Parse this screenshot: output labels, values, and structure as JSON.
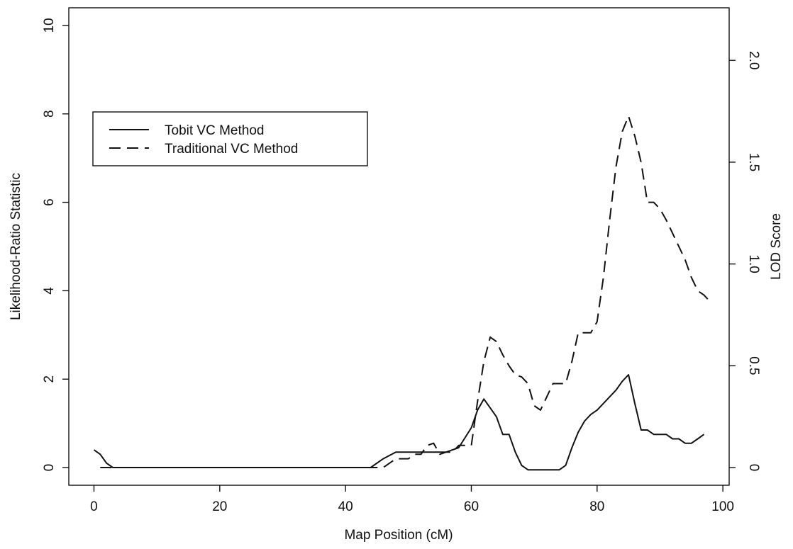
{
  "chart_data": {
    "type": "line",
    "title": "",
    "xlabel": "Map Position (cM)",
    "ylabel": "Likelihood-Ratio Statistic",
    "y2label": "LOD Score",
    "xlim": [
      -4,
      101
    ],
    "ylim": [
      -0.4,
      10.4
    ],
    "y2lim": [
      -0.0869,
      2.2583
    ],
    "x_ticks": [
      0,
      20,
      40,
      60,
      80,
      100
    ],
    "y_ticks": [
      0,
      2,
      4,
      6,
      8,
      10
    ],
    "y2_ticks": [
      "0",
      "0.5",
      "1.0",
      "1.5",
      "2.0"
    ],
    "y2_tick_values": [
      0,
      0.5,
      1.0,
      1.5,
      2.0
    ],
    "legend_position": "upper-left",
    "grid": false,
    "series": [
      {
        "name": "Tobit VC Method",
        "style": "solid",
        "x": [
          0,
          1,
          2,
          3,
          5,
          10,
          20,
          30,
          40,
          44,
          46,
          48,
          50,
          52,
          54,
          56,
          58,
          60,
          61,
          62,
          63,
          64,
          65,
          66,
          67,
          68,
          69,
          70,
          72,
          74,
          75,
          76,
          77,
          78,
          79,
          80,
          81,
          82,
          83,
          84,
          85,
          86,
          87,
          88,
          89,
          90,
          91,
          92,
          93,
          94,
          95,
          96,
          97
        ],
        "y": [
          0.4,
          0.3,
          0.1,
          0.0,
          0.0,
          0.0,
          0.0,
          0.0,
          0.0,
          0.0,
          0.2,
          0.35,
          0.35,
          0.35,
          0.35,
          0.35,
          0.45,
          0.9,
          1.3,
          1.55,
          1.35,
          1.15,
          0.75,
          0.75,
          0.35,
          0.05,
          -0.05,
          -0.05,
          -0.05,
          -0.05,
          0.05,
          0.45,
          0.8,
          1.05,
          1.2,
          1.3,
          1.45,
          1.6,
          1.75,
          1.95,
          2.1,
          1.45,
          0.85,
          0.85,
          0.75,
          0.75,
          0.75,
          0.65,
          0.65,
          0.55,
          0.55,
          0.65,
          0.75
        ]
      },
      {
        "name": "Traditional VC Method",
        "style": "dashed",
        "x": [
          1,
          2,
          3,
          5,
          10,
          20,
          30,
          40,
          45,
          46,
          47,
          48,
          49,
          50,
          51,
          52,
          53,
          54,
          55,
          56,
          57,
          58,
          59,
          60,
          61,
          62,
          63,
          64,
          65,
          66,
          67,
          68,
          69,
          70,
          71,
          72,
          73,
          74,
          75,
          76,
          77,
          78,
          79,
          80,
          81,
          82,
          83,
          84,
          85,
          86,
          87,
          88,
          89,
          90,
          91,
          92,
          93,
          94,
          95,
          96,
          97,
          98
        ],
        "y": [
          0.0,
          0.0,
          0.0,
          0.0,
          0.0,
          0.0,
          0.0,
          0.0,
          0.0,
          0.0,
          0.1,
          0.2,
          0.2,
          0.2,
          0.3,
          0.3,
          0.5,
          0.55,
          0.3,
          0.35,
          0.35,
          0.5,
          0.5,
          0.5,
          1.5,
          2.4,
          2.95,
          2.85,
          2.55,
          2.3,
          2.1,
          2.05,
          1.9,
          1.4,
          1.3,
          1.6,
          1.9,
          1.9,
          1.9,
          2.4,
          3.05,
          3.05,
          3.05,
          3.3,
          4.3,
          5.6,
          6.8,
          7.6,
          7.95,
          7.5,
          6.9,
          6.0,
          6.0,
          5.85,
          5.6,
          5.3,
          5.0,
          4.7,
          4.3,
          4.0,
          3.9,
          3.75
        ]
      }
    ]
  }
}
